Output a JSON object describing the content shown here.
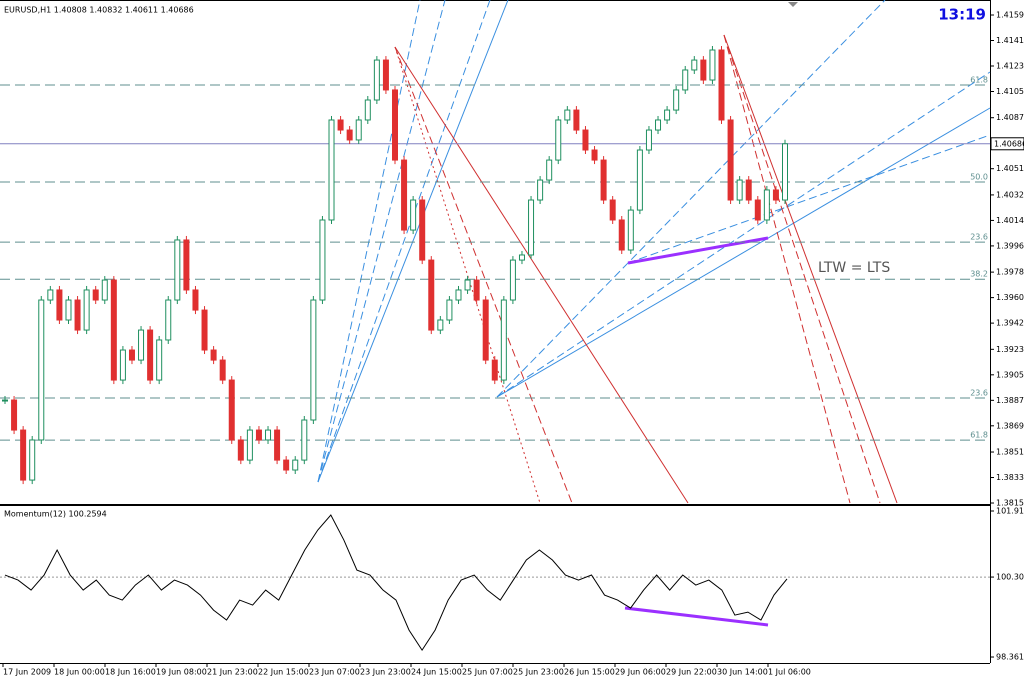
{
  "chart_data": [
    {
      "type": "candlestick",
      "title": "EURUSD,H1  1.40808 1.40832 1.40611 1.40686",
      "clock": "13:19",
      "annotation": "LTW = LTS",
      "up_color": "#1f8f5f",
      "down_color": "#e03030",
      "values": [
        1.38877,
        1.38665,
        1.38312,
        1.38595,
        1.39583,
        1.39654,
        1.39442,
        1.39583,
        1.39371,
        1.39654,
        1.39583,
        1.39724,
        1.39018,
        1.3923,
        1.39159,
        1.39371,
        1.39018,
        1.39301,
        1.39583,
        1.40007,
        1.39654,
        1.39512,
        1.3923,
        1.39159,
        1.39018,
        1.38595,
        1.38453,
        1.38665,
        1.38595,
        1.38665,
        1.38453,
        1.38383,
        1.38453,
        1.38736,
        1.39583,
        1.40148,
        1.40854,
        1.40783,
        1.40713,
        1.40854,
        1.40995,
        1.41277,
        1.41066,
        1.40571,
        1.40077,
        1.40289,
        1.39865,
        1.39371,
        1.39442,
        1.39583,
        1.39654,
        1.39724,
        1.39583,
        1.39159,
        1.39018,
        1.39583,
        1.39865,
        1.39901,
        1.40289,
        1.4043,
        1.40571,
        1.40854,
        1.40924,
        1.40783,
        1.40642,
        1.40571,
        1.40289,
        1.40148,
        1.39936,
        1.40218,
        1.40642,
        1.40783,
        1.40854,
        1.40924,
        1.41066,
        1.41207,
        1.41277,
        1.41136,
        1.41348,
        1.40854,
        1.40289,
        1.4043,
        1.40289,
        1.40148,
        1.4036,
        1.40289,
        1.40686
      ],
      "ylim": [
        1.38136,
        1.41701
      ],
      "yticks": [
        {
          "value": 1.41595,
          "label": "1.41595"
        },
        {
          "value": 1.41415,
          "label": "1.41415"
        },
        {
          "value": 1.41235,
          "label": "1.41235"
        },
        {
          "value": 1.41055,
          "label": "1.41055"
        },
        {
          "value": 1.4087,
          "label": "1.40870"
        },
        {
          "value": 1.4051,
          "label": "1.40510"
        },
        {
          "value": 1.40325,
          "label": "1.40325"
        },
        {
          "value": 1.40145,
          "label": "1.40145"
        },
        {
          "value": 1.39965,
          "label": "1.39965"
        },
        {
          "value": 1.3978,
          "label": "1.39780"
        },
        {
          "value": 1.396,
          "label": "1.39600"
        },
        {
          "value": 1.3942,
          "label": "1.39420"
        },
        {
          "value": 1.39235,
          "label": "1.39235"
        },
        {
          "value": 1.39055,
          "label": "1.39055"
        },
        {
          "value": 1.38875,
          "label": "1.38875"
        },
        {
          "value": 1.38695,
          "label": "1.38695"
        },
        {
          "value": 1.3851,
          "label": "1.38510"
        },
        {
          "value": 1.3833,
          "label": "1.38330"
        },
        {
          "value": 1.3815,
          "label": "1.38150"
        }
      ],
      "current_price": 1.40686,
      "fib_levels": [
        {
          "value": 1.41101,
          "label": "61.8"
        },
        {
          "value": 1.40416,
          "label": "50.0"
        },
        {
          "value": 1.39992,
          "label": "23.6"
        },
        {
          "value": 1.3973,
          "label": "38.2"
        },
        {
          "value": 1.38891,
          "label": "23.6"
        },
        {
          "value": 1.38594,
          "label": "61.8"
        }
      ]
    },
    {
      "type": "line",
      "title": "Momentum(12) 100.2594",
      "color": "#000000",
      "values": [
        100.354,
        100.232,
        99.989,
        100.354,
        100.962,
        100.354,
        99.989,
        100.232,
        99.867,
        99.745,
        100.11,
        100.354,
        99.989,
        100.232,
        100.11,
        99.867,
        99.502,
        99.259,
        99.745,
        99.624,
        99.989,
        99.745,
        100.354,
        100.962,
        101.448,
        101.813,
        101.205,
        100.475,
        100.354,
        99.989,
        99.745,
        99.015,
        98.529,
        99.015,
        99.745,
        100.232,
        100.354,
        99.989,
        99.745,
        100.232,
        100.719,
        100.962,
        100.719,
        100.354,
        100.232,
        100.354,
        99.867,
        99.745,
        99.551,
        99.989,
        100.354,
        99.989,
        100.354,
        100.11,
        100.232,
        99.989,
        99.38,
        99.453,
        99.259,
        99.867,
        100.2594
      ],
      "ylim": [
        98.24,
        102.008
      ],
      "yticks": [
        101.9105,
        100.3048,
        98.3611
      ],
      "time_labels": [
        "17 Jun 2009",
        "18 Jun 00:00",
        "18 Jun 16:00",
        "19 Jun 08:00",
        "21 Jun 23:00",
        "22 Jun 15:00",
        "23 Jun 07:00",
        "23 Jun 23:00",
        "24 Jun 15:00",
        "25 Jun 07:00",
        "25 Jun 23:00",
        "26 Jun 15:00",
        "29 Jun 06:00",
        "29 Jun 22:00",
        "30 Jun 14:00",
        "1 Jul 06:00"
      ]
    }
  ]
}
